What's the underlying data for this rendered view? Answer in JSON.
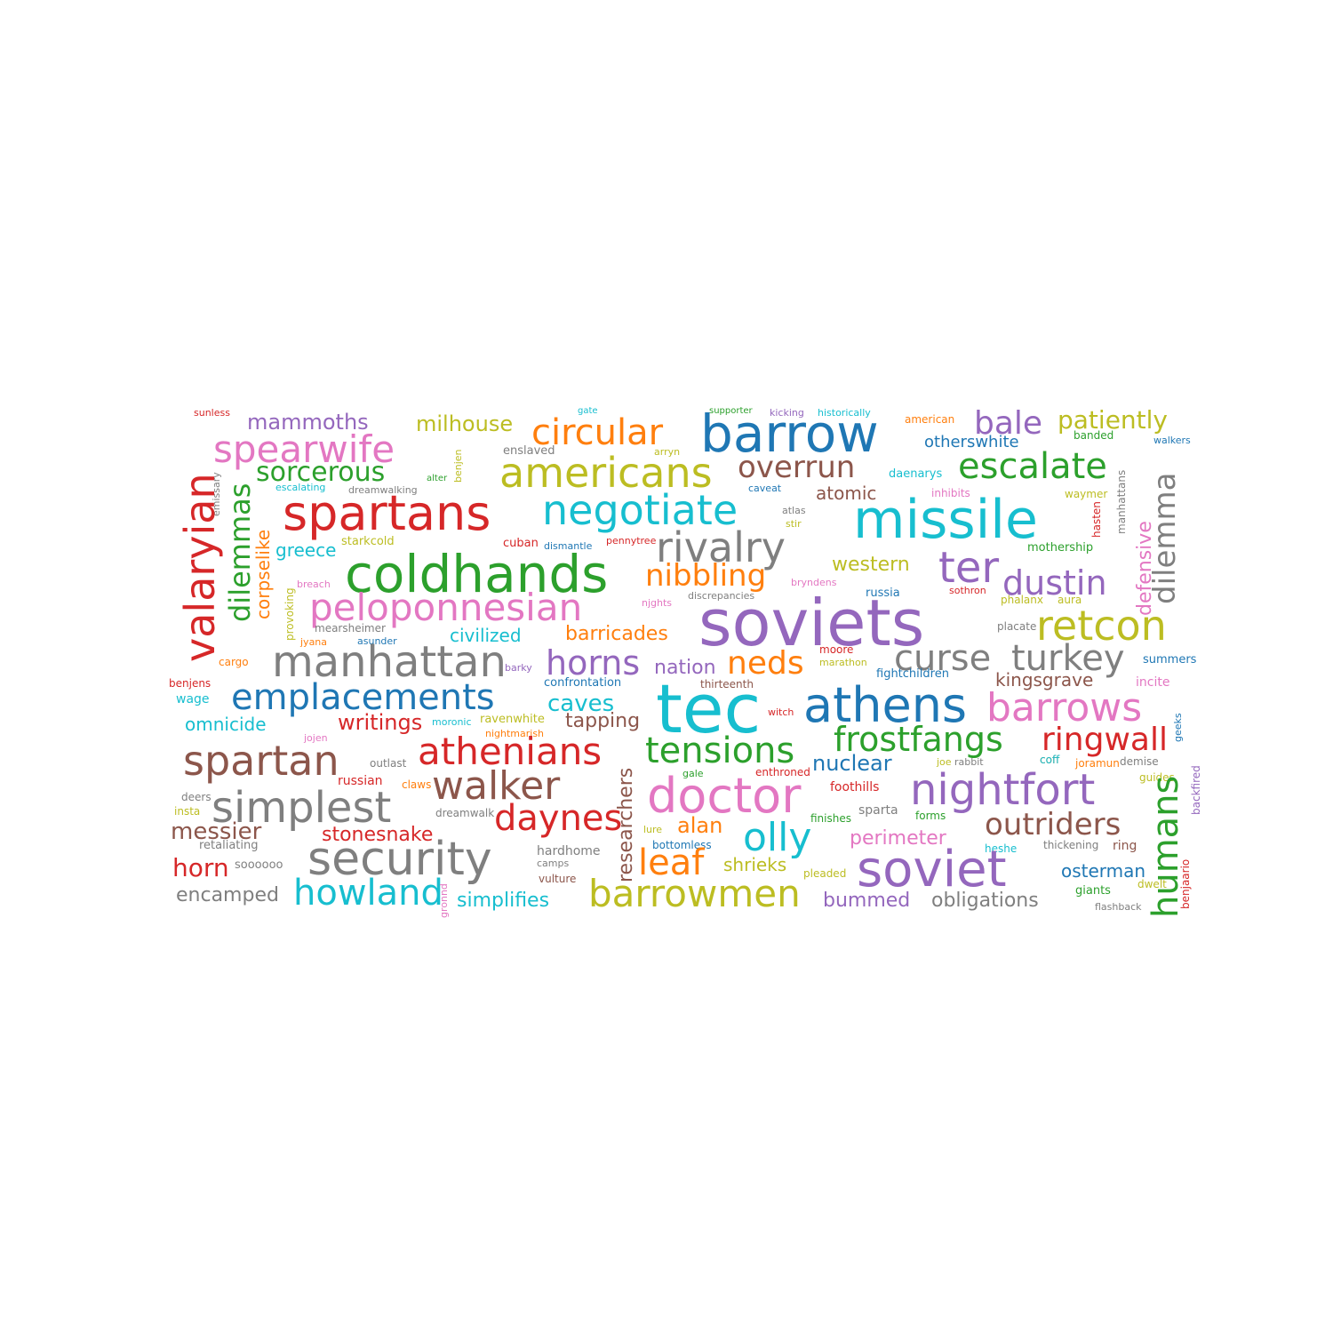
{
  "palette": {
    "blue": "#1f77b4",
    "orange": "#ff7f0e",
    "green": "#2ca02c",
    "red": "#d62728",
    "purple": "#9467bd",
    "brown": "#8c564b",
    "pink": "#e377c2",
    "gray": "#7f7f7f",
    "olive": "#bcbd22",
    "cyan": "#17becf"
  },
  "words": [
    {
      "text": "sunless",
      "color": "red"
    },
    {
      "text": "gate",
      "color": "cyan"
    },
    {
      "text": "supporter",
      "color": "green"
    },
    {
      "text": "kicking",
      "color": "purple"
    },
    {
      "text": "historically",
      "color": "cyan"
    },
    {
      "text": "american",
      "color": "orange"
    },
    {
      "text": "banded",
      "color": "green"
    },
    {
      "text": "walkers",
      "color": "blue"
    },
    {
      "text": "mammoths",
      "color": "purple"
    },
    {
      "text": "milhouse",
      "color": "olive"
    },
    {
      "text": "circular",
      "color": "orange"
    },
    {
      "text": "barrow",
      "color": "blue"
    },
    {
      "text": "bale",
      "color": "purple"
    },
    {
      "text": "patiently",
      "color": "olive"
    },
    {
      "text": "otherswhite",
      "color": "blue"
    },
    {
      "text": "spearwife",
      "color": "pink"
    },
    {
      "text": "enslaved",
      "color": "gray"
    },
    {
      "text": "arryn",
      "color": "olive"
    },
    {
      "text": "benjen",
      "color": "olive"
    },
    {
      "text": "sorcerous",
      "color": "green"
    },
    {
      "text": "americans",
      "color": "olive"
    },
    {
      "text": "overrun",
      "color": "brown"
    },
    {
      "text": "escalate",
      "color": "green"
    },
    {
      "text": "escalating",
      "color": "cyan"
    },
    {
      "text": "dreamwalking",
      "color": "gray"
    },
    {
      "text": "alter",
      "color": "green"
    },
    {
      "text": "caveat",
      "color": "blue"
    },
    {
      "text": "atomic",
      "color": "brown"
    },
    {
      "text": "daenarys",
      "color": "cyan"
    },
    {
      "text": "inhibits",
      "color": "pink"
    },
    {
      "text": "waymer",
      "color": "olive"
    },
    {
      "text": "emissary",
      "color": "gray"
    },
    {
      "text": "valaryian",
      "color": "red"
    },
    {
      "text": "spartans",
      "color": "red"
    },
    {
      "text": "negotiate",
      "color": "cyan"
    },
    {
      "text": "missile",
      "color": "cyan"
    },
    {
      "text": "dilemma",
      "color": "gray"
    },
    {
      "text": "atlas",
      "color": "gray"
    },
    {
      "text": "stir",
      "color": "olive"
    },
    {
      "text": "coff",
      "color": "orange"
    },
    {
      "text": "defensive",
      "color": "pink"
    },
    {
      "text": "manhattans",
      "color": "gray"
    },
    {
      "text": "hasten",
      "color": "red"
    },
    {
      "text": "dilemmas",
      "color": "green"
    },
    {
      "text": "starkcold",
      "color": "olive"
    },
    {
      "text": "greece",
      "color": "cyan"
    },
    {
      "text": "cuban",
      "color": "red"
    },
    {
      "text": "dismantle",
      "color": "blue"
    },
    {
      "text": "pennytree",
      "color": "red"
    },
    {
      "text": "rivalry",
      "color": "gray"
    },
    {
      "text": "western",
      "color": "olive"
    },
    {
      "text": "ter",
      "color": "purple"
    },
    {
      "text": "mothership",
      "color": "green"
    },
    {
      "text": "corpselike",
      "color": "orange"
    },
    {
      "text": "breach",
      "color": "pink"
    },
    {
      "text": "coldhands",
      "color": "green"
    },
    {
      "text": "nibbling",
      "color": "orange"
    },
    {
      "text": "bryndens",
      "color": "pink"
    },
    {
      "text": "discrepancies",
      "color": "gray"
    },
    {
      "text": "dustin",
      "color": "purple"
    },
    {
      "text": "provoking",
      "color": "olive"
    },
    {
      "text": "peloponnesian",
      "color": "pink"
    },
    {
      "text": "njghts",
      "color": "pink"
    },
    {
      "text": "russia",
      "color": "blue"
    },
    {
      "text": "sothron",
      "color": "red"
    },
    {
      "text": "phalanx",
      "color": "olive"
    },
    {
      "text": "aura",
      "color": "olive"
    },
    {
      "text": "mearsheimer",
      "color": "gray"
    },
    {
      "text": "sovietsoviets",
      "color": "purple",
      "display": "soviets"
    },
    {
      "text": "retcon",
      "color": "olive"
    },
    {
      "text": "civilized",
      "color": "cyan"
    },
    {
      "text": "barricades",
      "color": "orange"
    },
    {
      "text": "placate",
      "color": "gray"
    },
    {
      "text": "jyana",
      "color": "orange"
    },
    {
      "text": "asunder",
      "color": "blue"
    },
    {
      "text": "moore",
      "color": "red"
    },
    {
      "text": "manhattan",
      "color": "gray"
    },
    {
      "text": "horns",
      "color": "purple"
    },
    {
      "text": "neds",
      "color": "orange"
    },
    {
      "text": "curse",
      "color": "gray"
    },
    {
      "text": "turkey",
      "color": "gray"
    },
    {
      "text": "marathon",
      "color": "olive"
    },
    {
      "text": "cargo",
      "color": "orange"
    },
    {
      "text": "barky",
      "color": "purple"
    },
    {
      "text": "nation",
      "color": "purple"
    },
    {
      "text": "summers",
      "color": "blue"
    },
    {
      "text": "benjens",
      "color": "red"
    },
    {
      "text": "fightchildren",
      "color": "blue"
    },
    {
      "text": "confrontation",
      "color": "blue"
    },
    {
      "text": "thirteenth",
      "color": "brown"
    },
    {
      "text": "kingsgrave",
      "color": "brown"
    },
    {
      "text": "incite",
      "color": "pink"
    },
    {
      "text": "emplacements",
      "color": "blue"
    },
    {
      "text": "tec",
      "color": "cyan"
    },
    {
      "text": "athens",
      "color": "blue"
    },
    {
      "text": "barrows",
      "color": "pink"
    },
    {
      "text": "wage",
      "color": "cyan"
    },
    {
      "text": "caves",
      "color": "cyan"
    },
    {
      "text": "witch",
      "color": "red"
    },
    {
      "text": "omnicide",
      "color": "cyan"
    },
    {
      "text": "writings",
      "color": "red"
    },
    {
      "text": "moronic",
      "color": "cyan"
    },
    {
      "text": "ravenwhite",
      "color": "olive"
    },
    {
      "text": "tapping",
      "color": "brown"
    },
    {
      "text": "nightmarish",
      "color": "orange"
    },
    {
      "text": "frostfangs",
      "color": "green"
    },
    {
      "text": "ringwall",
      "color": "red"
    },
    {
      "text": "geeks",
      "color": "blue"
    },
    {
      "text": "jojen",
      "color": "pink"
    },
    {
      "text": "athenians",
      "color": "red"
    },
    {
      "text": "tensions",
      "color": "green"
    },
    {
      "text": "spartan",
      "color": "brown"
    },
    {
      "text": "outlast",
      "color": "gray"
    },
    {
      "text": "nuclear",
      "color": "blue"
    },
    {
      "text": "joe",
      "color": "olive"
    },
    {
      "text": "rabbit",
      "color": "gray"
    },
    {
      "text": "coff",
      "color": "cyan"
    },
    {
      "text": "joramun",
      "color": "orange"
    },
    {
      "text": "demise",
      "color": "gray"
    },
    {
      "text": "russian",
      "color": "red"
    },
    {
      "text": "claws",
      "color": "orange"
    },
    {
      "text": "walker",
      "color": "brown"
    },
    {
      "text": "gale",
      "color": "green"
    },
    {
      "text": "enthroned",
      "color": "red"
    },
    {
      "text": "nightfort",
      "color": "purple"
    },
    {
      "text": "guides",
      "color": "olive"
    },
    {
      "text": "deers",
      "color": "gray"
    },
    {
      "text": "doctor",
      "color": "pink"
    },
    {
      "text": "foothills",
      "color": "red"
    },
    {
      "text": "backfired",
      "color": "purple"
    },
    {
      "text": "simplest",
      "color": "gray"
    },
    {
      "text": "insta",
      "color": "olive"
    },
    {
      "text": "dreamwalk",
      "color": "gray"
    },
    {
      "text": "sparta",
      "color": "gray"
    },
    {
      "text": "finishes",
      "color": "green"
    },
    {
      "text": "forms",
      "color": "green"
    },
    {
      "text": "daynes",
      "color": "red"
    },
    {
      "text": "humans",
      "color": "green"
    },
    {
      "text": "benjaario",
      "color": "red"
    },
    {
      "text": "researchers",
      "color": "brown"
    },
    {
      "text": "messier",
      "color": "brown"
    },
    {
      "text": "stonesnake",
      "color": "red"
    },
    {
      "text": "lure",
      "color": "olive"
    },
    {
      "text": "alan",
      "color": "orange"
    },
    {
      "text": "olly",
      "color": "cyan"
    },
    {
      "text": "perimeter",
      "color": "pink"
    },
    {
      "text": "outriders",
      "color": "brown"
    },
    {
      "text": "retaliating",
      "color": "gray"
    },
    {
      "text": "bottomless",
      "color": "blue"
    },
    {
      "text": "thickening",
      "color": "gray"
    },
    {
      "text": "ring",
      "color": "brown"
    },
    {
      "text": "heshe",
      "color": "cyan"
    },
    {
      "text": "security",
      "color": "gray"
    },
    {
      "text": "hardhome",
      "color": "gray"
    },
    {
      "text": "camps",
      "color": "gray"
    },
    {
      "text": "leaf",
      "color": "orange"
    },
    {
      "text": "horn",
      "color": "red"
    },
    {
      "text": "soooooo",
      "color": "gray"
    },
    {
      "text": "shrieks",
      "color": "olive"
    },
    {
      "text": "soviet",
      "color": "purple"
    },
    {
      "text": "osterman",
      "color": "blue"
    },
    {
      "text": "pleaded",
      "color": "olive"
    },
    {
      "text": "vulture",
      "color": "brown"
    },
    {
      "text": "dwelt",
      "color": "olive"
    },
    {
      "text": "giants",
      "color": "green"
    },
    {
      "text": "encamped",
      "color": "gray"
    },
    {
      "text": "howland",
      "color": "cyan"
    },
    {
      "text": "gronnd",
      "color": "pink"
    },
    {
      "text": "simplifies",
      "color": "cyan"
    },
    {
      "text": "barrowmen",
      "color": "olive"
    },
    {
      "text": "bummed",
      "color": "purple"
    },
    {
      "text": "obligations",
      "color": "gray"
    },
    {
      "text": "flashback",
      "color": "gray"
    }
  ]
}
